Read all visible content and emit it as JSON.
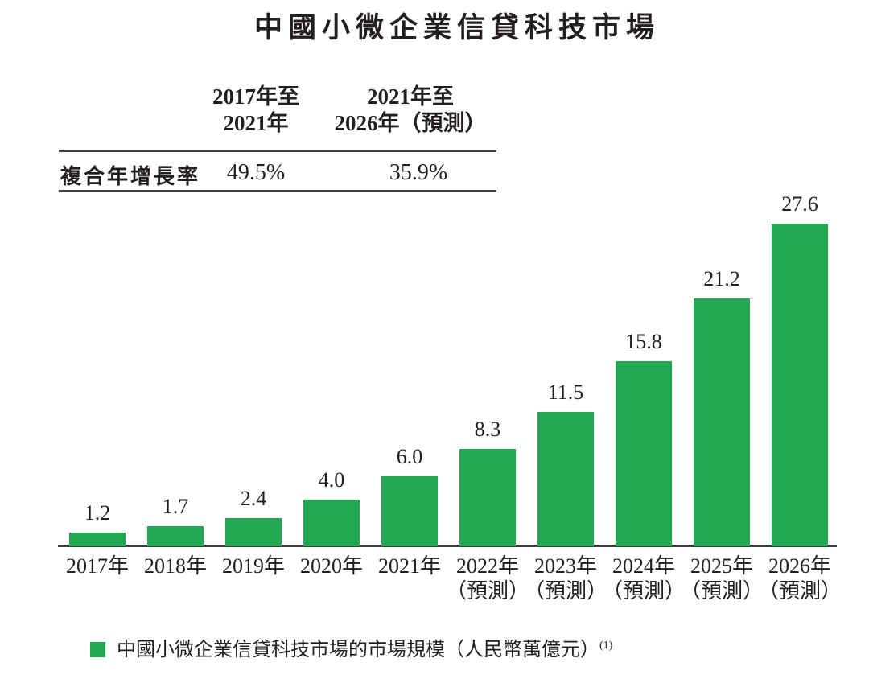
{
  "title": "中國小微企業信貸科技市場",
  "cagr_table": {
    "col1_header_line1": "2017年至",
    "col1_header_line2": "2021年",
    "col2_header_line1": "2021年至",
    "col2_header_line2": "2026年（預測）",
    "row_label": "複合年增長率",
    "col1_value": "49.5%",
    "col2_value": "35.9%"
  },
  "chart_data": {
    "type": "bar",
    "title": "中國小微企業信貸科技市場",
    "categories": [
      "2017年",
      "2018年",
      "2019年",
      "2020年",
      "2021年",
      "2022年",
      "2023年",
      "2024年",
      "2025年",
      "2026年"
    ],
    "category_notes": [
      "",
      "",
      "",
      "",
      "",
      "（預測）",
      "（預測）",
      "（預測）",
      "（預測）",
      "（預測）"
    ],
    "values": [
      1.2,
      1.7,
      2.4,
      4.0,
      6.0,
      8.3,
      11.5,
      15.8,
      21.2,
      27.6
    ],
    "value_labels": [
      "1.2",
      "1.7",
      "2.4",
      "4.0",
      "6.0",
      "8.3",
      "11.5",
      "15.8",
      "21.2",
      "27.6"
    ],
    "xlabel": "",
    "ylabel": "",
    "unit": "人民幣萬億元",
    "ylim": [
      0,
      30
    ],
    "grid": false,
    "bar_color": "#22a853",
    "axis_color": "#3d3d3d",
    "legend_position": "bottom-left"
  },
  "legend": {
    "swatch_color": "#22a853",
    "label": "中國小微企業信貸科技市場的市場規模（人民幣萬億元）",
    "superscript": "(1)"
  },
  "colors": {
    "text": "#231f20",
    "bar_green": "#22a853",
    "rule_gray": "#3d3d3d",
    "background": "#ffffff"
  }
}
